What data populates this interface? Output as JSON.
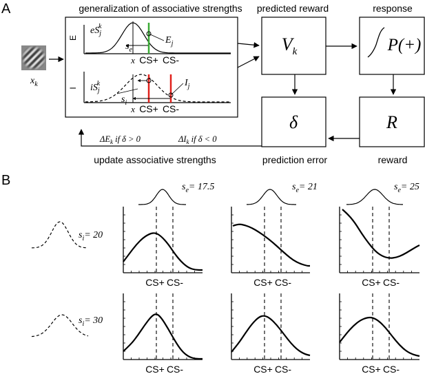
{
  "panel_a": {
    "label": "A",
    "headers": {
      "generalization": "generalization of associative strengths",
      "predicted_reward": "predicted reward",
      "response": "response",
      "update": "update associative strengths",
      "prediction_error": "prediction error",
      "reward": "reward"
    },
    "stimulus_label": "x",
    "stimulus_sub": "k",
    "excitatory": {
      "axis_label": "E",
      "curve_label": "eS",
      "curve_sup": "k",
      "curve_sub": "j",
      "width_label": "s",
      "width_sub": "e",
      "strength_label": "E",
      "strength_sub": "j",
      "x_ticks": [
        "x",
        "CS+",
        "CS-"
      ]
    },
    "inhibitory": {
      "axis_label": "I",
      "curve_label": "iS",
      "curve_sup": "k",
      "curve_sub": "j",
      "width_label": "s",
      "width_sub": "i",
      "strength_label": "I",
      "strength_sub": "j",
      "x_ticks": [
        "x",
        "CS+",
        "CS-"
      ]
    },
    "boxes": {
      "value": {
        "main": "V",
        "sub": "k"
      },
      "response": {
        "text": "P(+)"
      },
      "delta": {
        "text": "δ"
      },
      "reward": {
        "text": "R"
      }
    },
    "update_rules": {
      "excitatory": "ΔE",
      "excitatory_sub": "k",
      "excitatory_cond": " if δ > 0",
      "inhibitory": "ΔI",
      "inhibitory_sub": "k",
      "inhibitory_cond": " if δ < 0"
    }
  },
  "panel_b": {
    "label": "B",
    "column_headers": [
      {
        "sym": "s",
        "sub": "e",
        "eq": "= 17.5"
      },
      {
        "sym": "s",
        "sub": "e",
        "eq": "= 21"
      },
      {
        "sym": "s",
        "sub": "e",
        "eq": "= 25"
      }
    ],
    "row_headers": [
      {
        "sym": "s",
        "sub": "i",
        "eq": "= 20"
      },
      {
        "sym": "s",
        "sub": "i",
        "eq": "= 30"
      }
    ],
    "x_ticks": [
      "CS+",
      "CS-"
    ]
  },
  "colors": {
    "excitatory_marker": "#3aaa35",
    "inhibitory_marker": "#e0201b",
    "ink": "#000000"
  }
}
